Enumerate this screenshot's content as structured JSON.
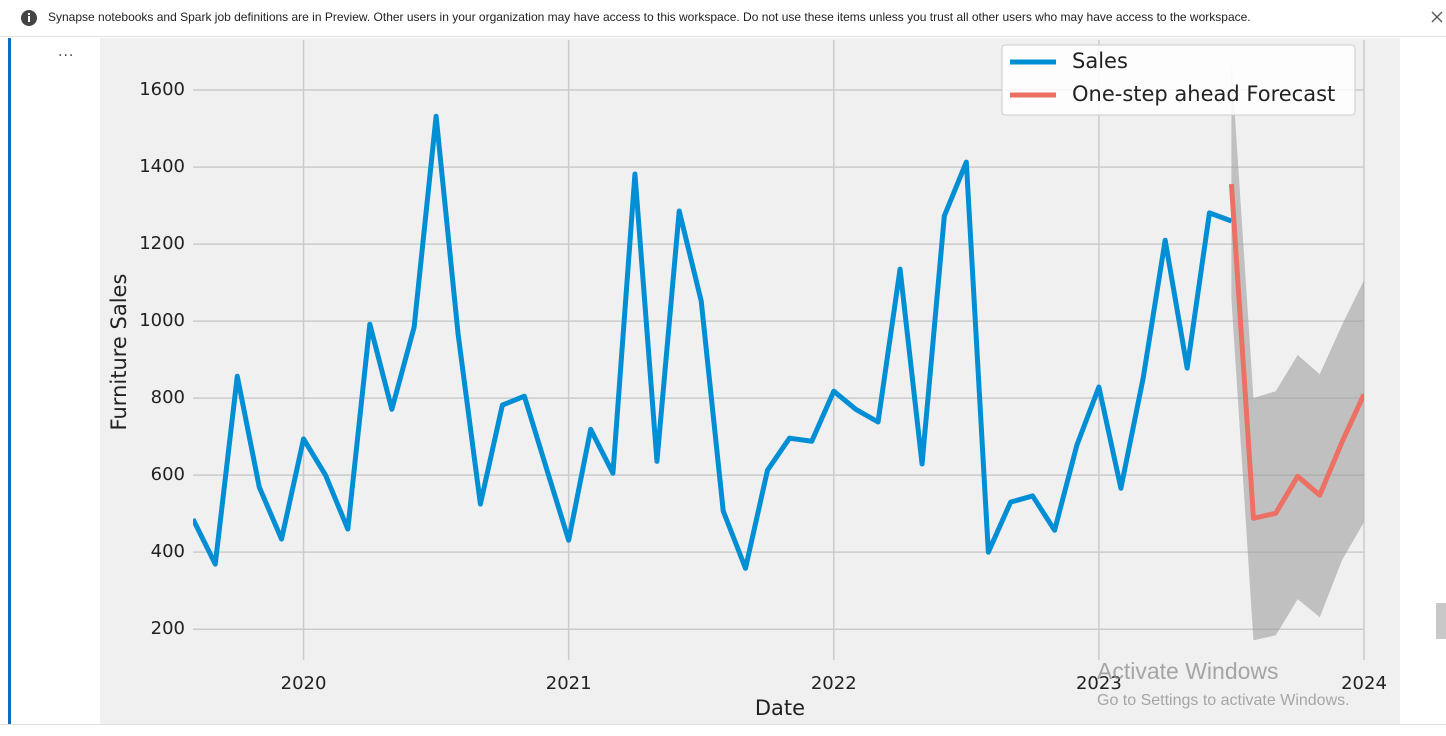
{
  "banner": {
    "text": "Synapse notebooks and Spark job definitions are in Preview. Other users in your organization may have access to this workspace. Do not use these items unless you trust all other users who may have access to the workspace."
  },
  "cell_menu": "...",
  "watermark": {
    "title": "Activate Windows",
    "subtitle": "Go to Settings to activate Windows."
  },
  "chart_data": {
    "type": "line",
    "x_label": "Date",
    "y_label": "Furniture Sales",
    "xlim": [
      2019.583,
      2024
    ],
    "xticks": [
      2020,
      2021,
      2022,
      2023,
      2024
    ],
    "ylim": [
      120,
      1730
    ],
    "yticks": [
      200,
      400,
      600,
      800,
      1000,
      1200,
      1400,
      1600
    ],
    "grid": true,
    "legend": "upper right",
    "band_color": "#999999",
    "series": [
      {
        "name": "Sales",
        "color": "#008fd5",
        "x": [
          2019.583,
          2019.667,
          2019.75,
          2019.833,
          2019.917,
          2020.0,
          2020.083,
          2020.167,
          2020.25,
          2020.333,
          2020.417,
          2020.5,
          2020.583,
          2020.667,
          2020.75,
          2020.833,
          2020.917,
          2021.0,
          2021.083,
          2021.167,
          2021.25,
          2021.333,
          2021.417,
          2021.5,
          2021.583,
          2021.667,
          2021.75,
          2021.833,
          2021.917,
          2022.0,
          2022.083,
          2022.167,
          2022.25,
          2022.333,
          2022.417,
          2022.5,
          2022.583,
          2022.667,
          2022.75,
          2022.833,
          2022.917,
          2023.0,
          2023.083,
          2023.167,
          2023.25,
          2023.333,
          2023.417,
          2023.5
        ],
        "values": [
          486,
          369,
          857,
          569,
          434,
          694,
          600,
          460,
          992,
          771,
          984,
          1532,
          966,
          525,
          782,
          805,
          616,
          431,
          719,
          605,
          1382,
          636,
          1286,
          1052,
          507,
          358,
          613,
          696,
          688,
          818,
          771,
          738,
          1135,
          629,
          1273,
          1413,
          400,
          530,
          546,
          457,
          678,
          829,
          566,
          852,
          1210,
          878,
          1281,
          1260
        ]
      },
      {
        "name": "One-step ahead Forecast",
        "color": "#ec7063",
        "x": [
          2023.5,
          2023.583,
          2023.667,
          2023.75,
          2023.833,
          2023.917,
          2024.0
        ],
        "values": [
          1356,
          488,
          501,
          597,
          548,
          686,
          810
        ],
        "lower": [
          1057,
          171,
          184,
          278,
          231,
          379,
          478
        ],
        "upper": [
          1670,
          800,
          818,
          912,
          862,
          990,
          1106
        ]
      }
    ]
  }
}
